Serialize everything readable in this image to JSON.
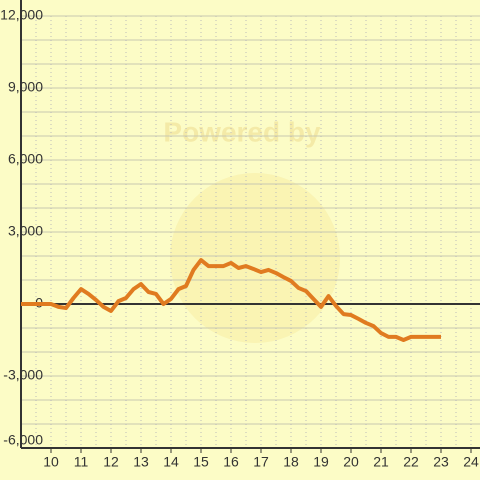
{
  "chart_data": {
    "type": "line",
    "watermark": "Powered by",
    "x": [
      9,
      10,
      10.25,
      10.5,
      10.75,
      11,
      11.25,
      11.5,
      11.75,
      12,
      12.25,
      12.5,
      12.75,
      13,
      13.25,
      13.5,
      13.75,
      14,
      14.25,
      14.5,
      14.75,
      15,
      15.25,
      15.5,
      15.75,
      16,
      16.25,
      16.5,
      16.75,
      17,
      17.25,
      17.5,
      17.75,
      18,
      18.25,
      18.5,
      18.75,
      19,
      19.25,
      19.5,
      19.75,
      20,
      20.25,
      20.5,
      20.75,
      21,
      21.25,
      21.5,
      21.75,
      22,
      22.25,
      22.5,
      22.75,
      23
    ],
    "series": [
      {
        "color": "#e07b20",
        "values": [
          0,
          0,
          -120,
          -170,
          250,
          620,
          420,
          170,
          -120,
          -290,
          120,
          250,
          620,
          830,
          500,
          420,
          0,
          210,
          620,
          750,
          1420,
          1830,
          1580,
          1580,
          1580,
          1710,
          1500,
          1580,
          1460,
          1330,
          1420,
          1290,
          1120,
          960,
          670,
          540,
          210,
          -120,
          330,
          -80,
          -420,
          -460,
          -620,
          -790,
          -920,
          -1210,
          -1370,
          -1370,
          -1500,
          -1370,
          -1370,
          -1370,
          -1370,
          -1370
        ]
      }
    ],
    "xlim": [
      9,
      24.3
    ],
    "xticks": [
      10,
      11,
      12,
      13,
      14,
      15,
      16,
      17,
      18,
      19,
      20,
      21,
      22,
      23,
      24
    ],
    "minor_xticks": [
      9.5,
      10,
      10.5,
      11,
      11.5,
      12,
      12.5,
      13,
      13.5,
      14,
      14.5,
      15,
      15.5,
      16,
      16.5,
      17,
      17.5,
      18,
      18.5,
      19,
      19.5,
      20,
      20.5,
      21,
      21.5,
      22,
      22.5,
      23,
      23.5,
      24
    ],
    "ylim": [
      -6000,
      12000
    ],
    "yticks": [
      {
        "value": -6000,
        "label": "-6,000"
      },
      {
        "value": -3000,
        "label": "-3,000"
      },
      0,
      {
        "value": 3000,
        "label": "3,000"
      },
      {
        "value": 6000,
        "label": "6,000"
      },
      {
        "value": 9000,
        "label": "9,000"
      },
      {
        "value": 12000,
        "label": "12,000"
      }
    ],
    "minor_yticks": [
      -5000,
      -4000,
      -2000,
      -1000,
      1000,
      2000,
      4000,
      5000,
      7000,
      8000,
      10000,
      11000
    ],
    "grid": true
  }
}
